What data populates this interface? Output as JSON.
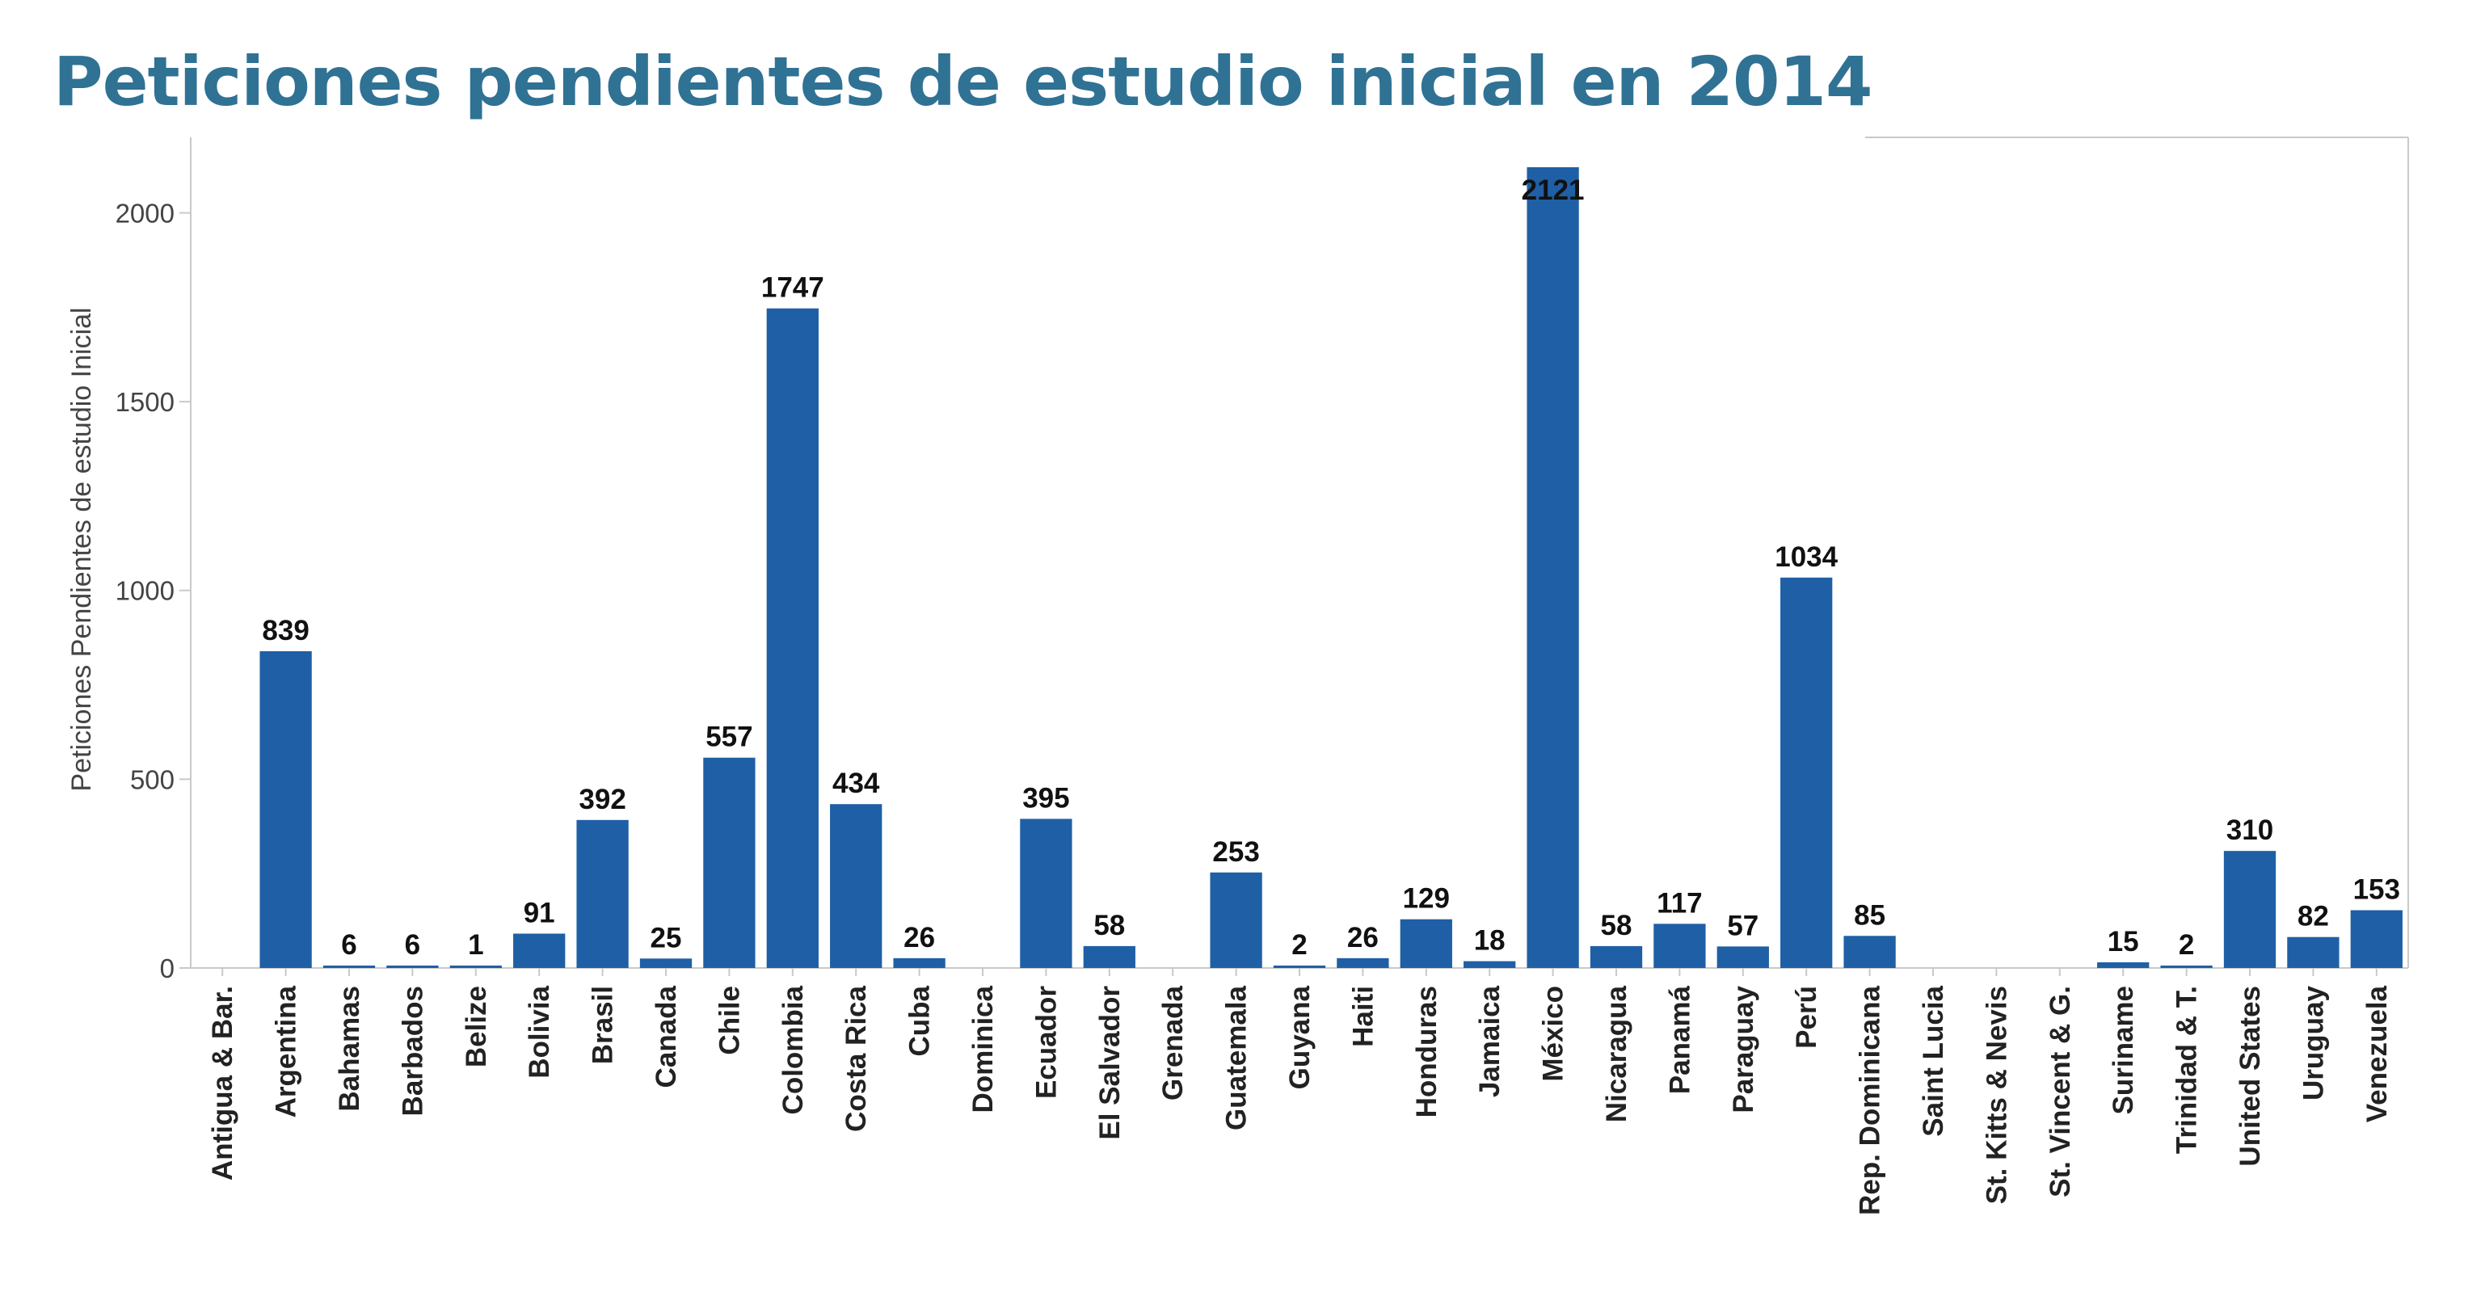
{
  "chart_data": {
    "type": "bar",
    "title": "Peticiones pendientes de estudio inicial en 2014",
    "ylabel": "Peticiones Pendientes de estudio Inicial",
    "xlabel": "",
    "ylim": [
      0,
      2200
    ],
    "yticks": [
      0,
      500,
      1000,
      1500,
      2000
    ],
    "bar_color": "#1f5fa5",
    "categories": [
      "Antigua & Bar.",
      "Argentina",
      "Bahamas",
      "Barbados",
      "Belize",
      "Bolivia",
      "Brasil",
      "Canada",
      "Chile",
      "Colombia",
      "Costa Rica",
      "Cuba",
      "Dominica",
      "Ecuador",
      "El Salvador",
      "Grenada",
      "Guatemala",
      "Guyana",
      "Haiti",
      "Honduras",
      "Jamaica",
      "México",
      "Nicaragua",
      "Panamá",
      "Paraguay",
      "Perú",
      "Rep. Dominicana",
      "Saint Lucia",
      "St. Kitts & Nevis",
      "St. Vincent & G.",
      "Suriname",
      "Trinidad & T.",
      "United States",
      "Uruguay",
      "Venezuela"
    ],
    "values": [
      null,
      839,
      6,
      6,
      1,
      91,
      392,
      25,
      557,
      1747,
      434,
      26,
      null,
      395,
      58,
      null,
      253,
      2,
      26,
      129,
      18,
      2121,
      58,
      117,
      57,
      1034,
      85,
      null,
      null,
      null,
      15,
      2,
      310,
      82,
      153
    ],
    "grid": false,
    "legend": "none"
  }
}
